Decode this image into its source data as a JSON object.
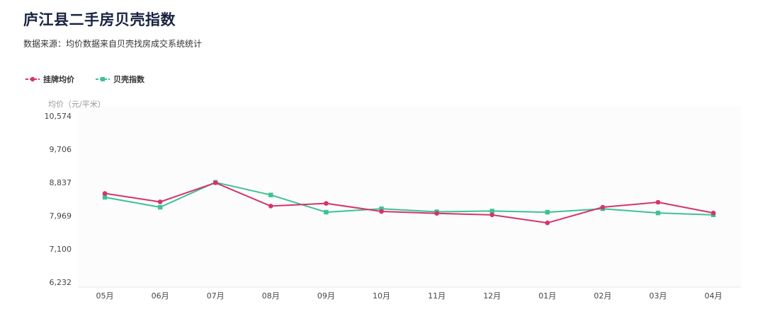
{
  "page": {
    "title": "庐江县二手房贝壳指数",
    "subtitle": "数据来源：均价数据来自贝壳找房成交系统统计"
  },
  "colors": {
    "listing": "#d6336c",
    "index": "#3cc390",
    "axis_text": "#444444",
    "unit_text": "#999999",
    "plot_bg": "#fcfcfd"
  },
  "chart_data": {
    "type": "line",
    "categories": [
      "05月",
      "06月",
      "07月",
      "08月",
      "09月",
      "10月",
      "11月",
      "12月",
      "01月",
      "02月",
      "03月",
      "04月"
    ],
    "series": [
      {
        "name": "挂牌均价",
        "color": "#d6336c",
        "marker": "circle",
        "values": [
          8550,
          8330,
          8830,
          8220,
          8290,
          8080,
          8030,
          7990,
          7780,
          8190,
          8320,
          8040
        ]
      },
      {
        "name": "贝壳指数",
        "color": "#3cc390",
        "marker": "square",
        "values": [
          8450,
          8190,
          8840,
          8510,
          8060,
          8150,
          8070,
          8090,
          8060,
          8150,
          8040,
          7990
        ]
      }
    ],
    "ylabel": "均价（元/平米）",
    "yticks": [
      "10,574",
      "9,706",
      "8,837",
      "7,969",
      "7,100",
      "6,232"
    ],
    "ylim": [
      6232,
      10574
    ],
    "legend_position": "top-left",
    "grid": false
  }
}
